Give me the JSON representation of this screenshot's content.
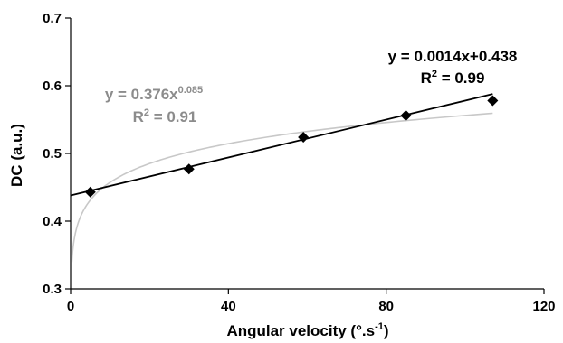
{
  "chart_data": {
    "type": "scatter",
    "xlabel": {
      "main": "Angular velocity (°.s",
      "sup": "-1",
      "end": ")"
    },
    "ylabel": "DC (a.u.)",
    "xlim": [
      0,
      120
    ],
    "ylim": [
      0.3,
      0.7
    ],
    "x_ticks": [
      "0",
      "40",
      "80",
      "120"
    ],
    "y_ticks": [
      "0.3",
      "0.4",
      "0.5",
      "0.6",
      "0.7"
    ],
    "grid": false,
    "points": [
      {
        "x": 5,
        "y": 0.443
      },
      {
        "x": 30,
        "y": 0.477
      },
      {
        "x": 59,
        "y": 0.524
      },
      {
        "x": 85,
        "y": 0.556
      },
      {
        "x": 107,
        "y": 0.578
      }
    ],
    "linear_fit": {
      "equation": "y = 0.0014x+0.438",
      "r2_prefix": "R",
      "r2_sup": "2",
      "r2_value": " = 0.99",
      "slope": 0.0014,
      "intercept": 0.438,
      "x_range": [
        0,
        107
      ],
      "color": "#000000"
    },
    "power_fit": {
      "equation_base": "y = 0.376x",
      "equation_exp": "0.085",
      "r2_prefix": "R",
      "r2_sup": "2",
      "r2_value": " = 0.91",
      "coef": 0.376,
      "exponent": 0.085,
      "x_range": [
        0.3,
        107
      ],
      "color": "#c8c8c8",
      "label_color": "#8c8c8c"
    },
    "marker_color": "#000000"
  }
}
